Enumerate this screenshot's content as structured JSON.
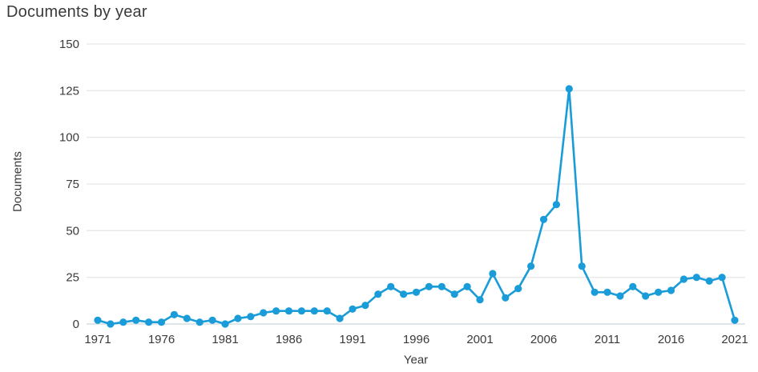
{
  "chart_data": {
    "type": "line",
    "title": "Documents by year",
    "xlabel": "Year",
    "ylabel": "Documents",
    "x": [
      1971,
      1972,
      1973,
      1974,
      1975,
      1976,
      1977,
      1978,
      1979,
      1980,
      1981,
      1982,
      1983,
      1984,
      1985,
      1986,
      1987,
      1988,
      1989,
      1990,
      1991,
      1992,
      1993,
      1994,
      1995,
      1996,
      1997,
      1998,
      1999,
      2000,
      2001,
      2002,
      2003,
      2004,
      2005,
      2006,
      2007,
      2008,
      2009,
      2010,
      2011,
      2012,
      2013,
      2014,
      2015,
      2016,
      2017,
      2018,
      2019,
      2020,
      2021
    ],
    "values": [
      2,
      0,
      1,
      2,
      1,
      1,
      5,
      3,
      1,
      2,
      0,
      3,
      4,
      6,
      7,
      7,
      7,
      7,
      7,
      3,
      8,
      10,
      16,
      20,
      16,
      17,
      20,
      20,
      16,
      20,
      13,
      27,
      14,
      19,
      31,
      56,
      64,
      126,
      31,
      17,
      17,
      15,
      20,
      15,
      17,
      18,
      24,
      25,
      23,
      25,
      2
    ],
    "series_name": "Documents",
    "ylim": [
      0,
      150
    ],
    "y_ticks": [
      0,
      25,
      50,
      75,
      100,
      125,
      150
    ],
    "x_tick_labels": [
      "1971",
      "1976",
      "1981",
      "1986",
      "1991",
      "1996",
      "2001",
      "2006",
      "2011",
      "2016",
      "2021"
    ],
    "grid": "horizontal gridlines only",
    "legend": "none",
    "colors": {
      "line": "#199cd8",
      "marker": "#199cd8",
      "gridline": "#e8e8e8",
      "baseline": "#c9d6e0",
      "text": "#3a3a3a",
      "background": "#ffffff"
    }
  }
}
